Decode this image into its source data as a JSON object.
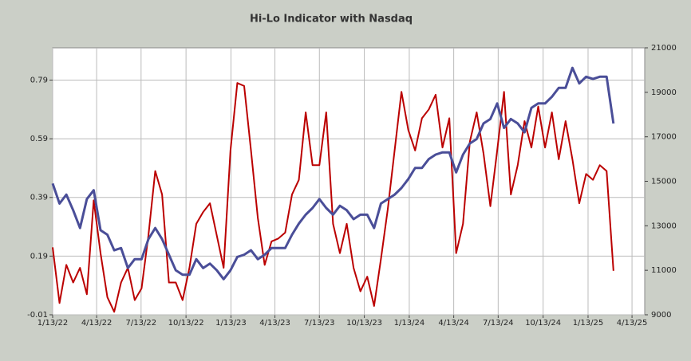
{
  "chart_data": {
    "type": "line",
    "title": "Hi-Lo Indicator with Nasdaq",
    "x": [
      "2022-01-13",
      "2022-01-27",
      "2022-02-10",
      "2022-02-24",
      "2022-03-10",
      "2022-03-24",
      "2022-04-07",
      "2022-04-21",
      "2022-05-05",
      "2022-05-19",
      "2022-06-02",
      "2022-06-16",
      "2022-06-30",
      "2022-07-14",
      "2022-07-28",
      "2022-08-11",
      "2022-08-25",
      "2022-09-08",
      "2022-09-22",
      "2022-10-06",
      "2022-10-20",
      "2022-11-03",
      "2022-11-17",
      "2022-12-01",
      "2022-12-15",
      "2022-12-29",
      "2023-01-12",
      "2023-01-26",
      "2023-02-09",
      "2023-02-23",
      "2023-03-09",
      "2023-03-23",
      "2023-04-06",
      "2023-04-20",
      "2023-05-04",
      "2023-05-18",
      "2023-06-01",
      "2023-06-15",
      "2023-06-29",
      "2023-07-13",
      "2023-07-27",
      "2023-08-10",
      "2023-08-24",
      "2023-09-07",
      "2023-09-21",
      "2023-10-05",
      "2023-10-19",
      "2023-11-02",
      "2023-11-16",
      "2023-11-30",
      "2023-12-14",
      "2023-12-28",
      "2024-01-11",
      "2024-01-25",
      "2024-02-08",
      "2024-02-22",
      "2024-03-07",
      "2024-03-21",
      "2024-04-04",
      "2024-04-18",
      "2024-05-02",
      "2024-05-16",
      "2024-05-30",
      "2024-06-13",
      "2024-06-27",
      "2024-07-11",
      "2024-07-25",
      "2024-08-08",
      "2024-08-22",
      "2024-09-05",
      "2024-09-19",
      "2024-10-03",
      "2024-10-17",
      "2024-10-31",
      "2024-11-14",
      "2024-11-28",
      "2024-12-12",
      "2024-12-26",
      "2025-01-09",
      "2025-01-23",
      "2025-02-06",
      "2025-02-20",
      "2025-03-06"
    ],
    "series": [
      {
        "color": "#bb0000",
        "axis": "y",
        "values": [
          0.22,
          0.03,
          0.16,
          0.1,
          0.15,
          0.06,
          0.38,
          0.2,
          0.05,
          0.0,
          0.1,
          0.15,
          0.04,
          0.08,
          0.26,
          0.48,
          0.4,
          0.1,
          0.1,
          0.04,
          0.15,
          0.3,
          0.34,
          0.37,
          0.26,
          0.15,
          0.55,
          0.78,
          0.77,
          0.55,
          0.32,
          0.16,
          0.24,
          0.25,
          0.27,
          0.4,
          0.45,
          0.68,
          0.5,
          0.5,
          0.68,
          0.3,
          0.2,
          0.3,
          0.15,
          0.07,
          0.12,
          0.02,
          0.18,
          0.35,
          0.55,
          0.75,
          0.62,
          0.55,
          0.66,
          0.69,
          0.74,
          0.56,
          0.66,
          0.2,
          0.3,
          0.58,
          0.68,
          0.54,
          0.36,
          0.55,
          0.75,
          0.4,
          0.5,
          0.65,
          0.56,
          0.7,
          0.56,
          0.68,
          0.52,
          0.65,
          0.52,
          0.37,
          0.47,
          0.45,
          0.5,
          0.48,
          0.14
        ]
      },
      {
        "color": "#4a4e98",
        "axis": "y2",
        "values": [
          14900,
          14000,
          14400,
          13700,
          12900,
          14200,
          14600,
          12800,
          12600,
          11900,
          12000,
          11100,
          11500,
          11500,
          12400,
          12900,
          12400,
          11700,
          11000,
          10800,
          10800,
          11500,
          11100,
          11300,
          11000,
          10600,
          11000,
          11600,
          11700,
          11900,
          11500,
          11700,
          12000,
          12000,
          12000,
          12600,
          13100,
          13500,
          13800,
          14200,
          13800,
          13500,
          13900,
          13700,
          13300,
          13500,
          13500,
          12900,
          14000,
          14200,
          14400,
          14700,
          15100,
          15600,
          15600,
          16000,
          16200,
          16300,
          16300,
          15400,
          16200,
          16700,
          16900,
          17600,
          17800,
          18500,
          17400,
          17800,
          17600,
          17200,
          18300,
          18500,
          18500,
          18800,
          19200,
          19200,
          20100,
          19400,
          19700,
          19600,
          19700,
          19700,
          17600
        ]
      }
    ],
    "xlim": [
      "2022-01-13",
      "2025-05-09"
    ],
    "xticks": [
      {
        "value": "2022-01-13",
        "label": "1/13/22"
      },
      {
        "value": "2022-04-13",
        "label": "4/13/22"
      },
      {
        "value": "2022-07-13",
        "label": "7/13/22"
      },
      {
        "value": "2022-10-13",
        "label": "10/13/22"
      },
      {
        "value": "2023-01-13",
        "label": "1/13/23"
      },
      {
        "value": "2023-04-13",
        "label": "4/13/23"
      },
      {
        "value": "2023-07-13",
        "label": "7/13/23"
      },
      {
        "value": "2023-10-13",
        "label": "10/13/23"
      },
      {
        "value": "2024-01-13",
        "label": "1/13/24"
      },
      {
        "value": "2024-04-13",
        "label": "4/13/24"
      },
      {
        "value": "2024-07-13",
        "label": "7/13/24"
      },
      {
        "value": "2024-10-13",
        "label": "10/13/24"
      },
      {
        "value": "2025-01-13",
        "label": "1/13/25"
      },
      {
        "value": "2025-04-13",
        "label": "4/13/25"
      }
    ],
    "ylim": [
      -0.01,
      0.9
    ],
    "yticks": [
      -0.01,
      0.19,
      0.39,
      0.59,
      0.79
    ],
    "y2lim": [
      9000,
      21000
    ],
    "y2ticks": [
      9000,
      11000,
      13000,
      15000,
      17000,
      19000,
      21000
    ],
    "grid": true
  }
}
